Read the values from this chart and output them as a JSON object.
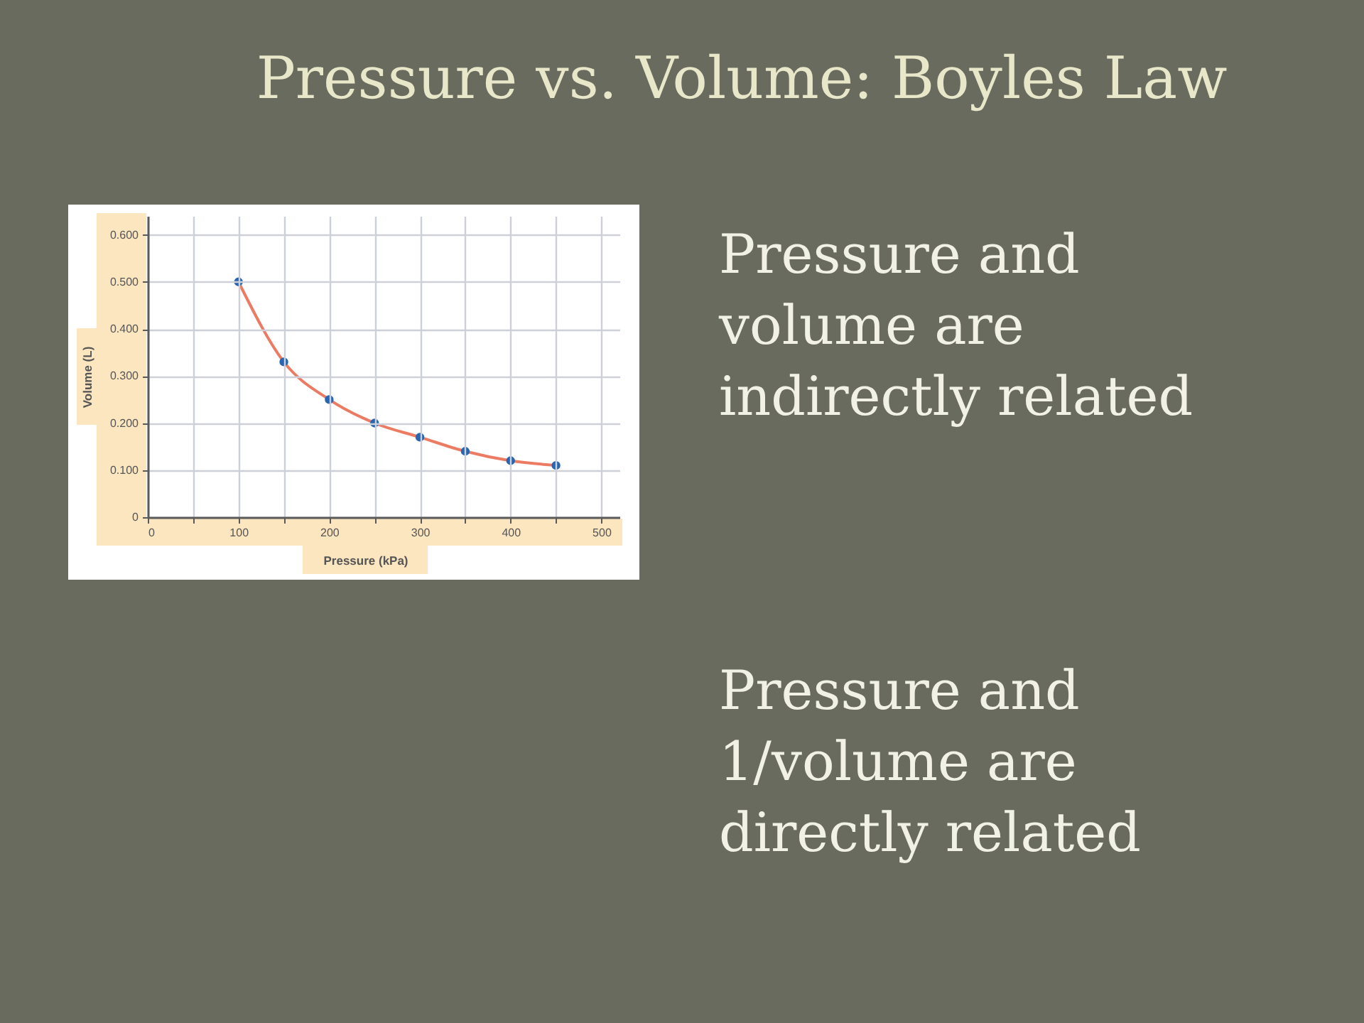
{
  "chart_data": {
    "type": "scatter",
    "title": "Pressure vs. Volume: Boyles Law",
    "xlabel": "Pressure (kPa)",
    "ylabel": "Volume (L)",
    "x": [
      100,
      150,
      200,
      250,
      300,
      350,
      400,
      450
    ],
    "series": [
      {
        "type": "line",
        "marker": "none",
        "color": "#eb7b63",
        "values": [
          0.5,
          0.33,
          0.25,
          0.2,
          0.17,
          0.14,
          0.12,
          0.11
        ]
      },
      {
        "color": "#2866b1",
        "values": [
          0.5,
          0.33,
          0.25,
          0.2,
          0.17,
          0.14,
          0.12,
          0.11
        ]
      }
    ],
    "xlim": [
      0,
      520
    ],
    "ylim": [
      0,
      0.64
    ],
    "xticks": [
      0,
      {
        "value": 50,
        "label": null
      },
      100,
      {
        "value": 150,
        "label": null
      },
      200,
      {
        "value": 250,
        "label": null
      },
      300,
      {
        "value": 350,
        "label": null
      },
      400,
      {
        "value": 450,
        "label": null
      },
      500
    ],
    "yticks": [
      0,
      {
        "value": 0.1,
        "label": "0.100"
      },
      {
        "value": 0.2,
        "label": "0.200"
      },
      {
        "value": 0.3,
        "label": "0.300"
      },
      {
        "value": 0.4,
        "label": "0.400"
      },
      {
        "value": 0.5,
        "label": "0.500"
      },
      {
        "value": 0.6,
        "label": "0.600"
      }
    ],
    "grid": true,
    "marker": "circle",
    "annotations": [
      "Pressure and volume are indirectly related",
      "Pressure and 1/volume are directly related"
    ]
  }
}
